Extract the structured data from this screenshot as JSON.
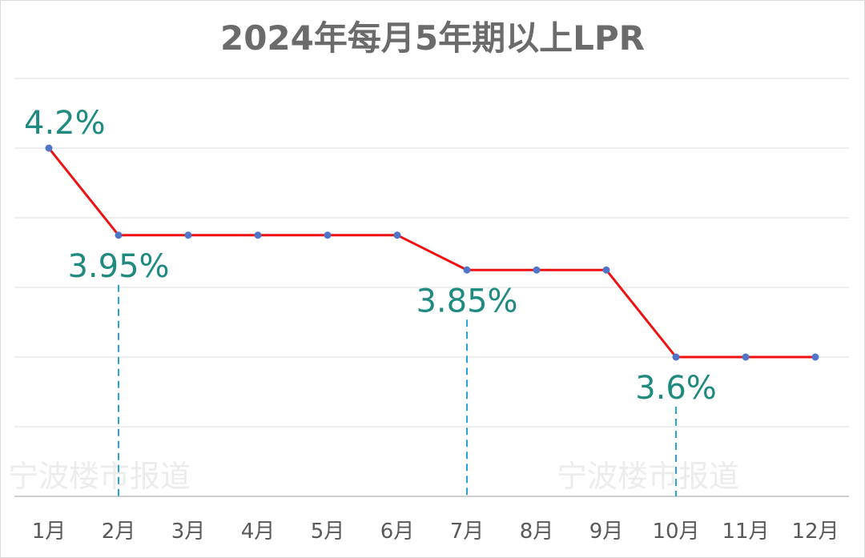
{
  "chart_data": {
    "type": "line",
    "title": "2024年每月5年期以上LPR",
    "categories": [
      "1月",
      "2月",
      "3月",
      "4月",
      "5月",
      "6月",
      "7月",
      "8月",
      "9月",
      "10月",
      "11月",
      "12月"
    ],
    "series": [
      {
        "values": [
          4.2,
          3.95,
          3.95,
          3.95,
          3.95,
          3.95,
          3.85,
          3.85,
          3.85,
          3.6,
          3.6,
          3.6
        ]
      }
    ],
    "ylim": [
      3.2,
      4.4
    ],
    "grid": true,
    "annotations": [
      {
        "category": "1月",
        "label": "4.2%"
      },
      {
        "category": "2月",
        "label": "3.95%"
      },
      {
        "category": "7月",
        "label": "3.85%"
      },
      {
        "category": "10月",
        "label": "3.6%"
      }
    ],
    "colors": {
      "line": "#ee1111",
      "marker": "#4f74c8",
      "label": "#1f8a80",
      "guide": "#2aa3dd"
    }
  },
  "watermark": "宁波楼市报道"
}
